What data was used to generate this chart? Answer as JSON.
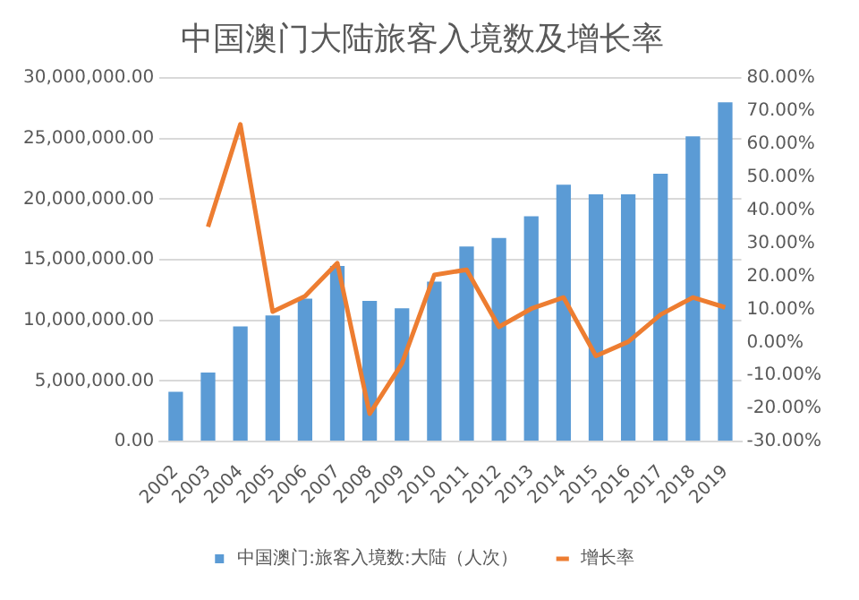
{
  "chart_data": {
    "type": "bar",
    "title": "中国澳门大陆旅客入境数及增长率",
    "categories": [
      "2002",
      "2003",
      "2004",
      "2005",
      "2006",
      "2007",
      "2008",
      "2009",
      "2010",
      "2011",
      "2012",
      "2013",
      "2014",
      "2015",
      "2016",
      "2017",
      "2018",
      "2019"
    ],
    "series": [
      {
        "name": "中国澳门:旅客入境数:大陆（人次）",
        "color": "#5b9bd5",
        "values": [
          4100000,
          5700000,
          9500000,
          10400000,
          11800000,
          14500000,
          11600000,
          11000000,
          13200000,
          16100000,
          16800000,
          18600000,
          21200000,
          20400000,
          20400000,
          22100000,
          25200000,
          28000000
        ]
      },
      {
        "name": "增长率",
        "type": "line",
        "axis": "y2",
        "color": "#ed7d31",
        "values": [
          null,
          35,
          66,
          9.3,
          14,
          24,
          -21.6,
          -6.4,
          20.4,
          22,
          4.7,
          10.2,
          13.6,
          -4.1,
          0.2,
          8.4,
          13.6,
          10.6
        ]
      }
    ],
    "ylim": [
      0,
      30000000
    ],
    "yticks": [
      {
        "value": 0,
        "label": "0.00"
      },
      {
        "value": 5000000,
        "label": "5,000,000.00"
      },
      {
        "value": 10000000,
        "label": "10,000,000.00"
      },
      {
        "value": 15000000,
        "label": "15,000,000.00"
      },
      {
        "value": 20000000,
        "label": "20,000,000.00"
      },
      {
        "value": 25000000,
        "label": "25,000,000.00"
      },
      {
        "value": 30000000,
        "label": "30,000,000.00"
      }
    ],
    "y2lim": [
      -30,
      80
    ],
    "y2ticks": [
      {
        "value": -30,
        "label": "-30.00%"
      },
      {
        "value": -20,
        "label": "-20.00%"
      },
      {
        "value": -10,
        "label": "-10.00%"
      },
      {
        "value": 0,
        "label": "0.00%"
      },
      {
        "value": 10,
        "label": "10.00%"
      },
      {
        "value": 20,
        "label": "20.00%"
      },
      {
        "value": 30,
        "label": "30.00%"
      },
      {
        "value": 40,
        "label": "40.00%"
      },
      {
        "value": 50,
        "label": "50.00%"
      },
      {
        "value": 60,
        "label": "60.00%"
      },
      {
        "value": 70,
        "label": "70.00%"
      },
      {
        "value": 80,
        "label": "80.00%"
      }
    ],
    "grid": "y",
    "legend": "bottom",
    "marker": "none"
  }
}
